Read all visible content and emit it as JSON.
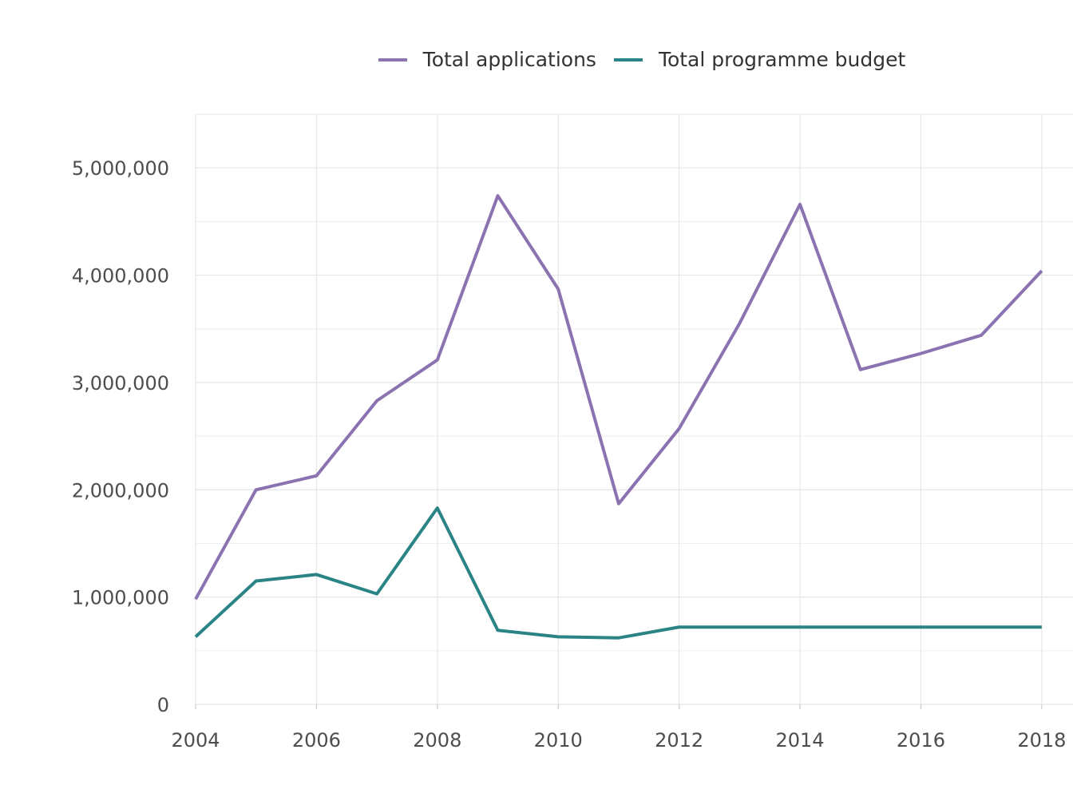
{
  "chart_data": {
    "type": "line",
    "title": "",
    "xlabel": "",
    "ylabel": "",
    "x": [
      2004,
      2005,
      2006,
      2007,
      2008,
      2009,
      2010,
      2011,
      2012,
      2013,
      2014,
      2015,
      2016,
      2017,
      2018
    ],
    "xlim": [
      2004,
      2018.2
    ],
    "ylim": [
      0,
      5500000
    ],
    "x_ticks": [
      2004,
      2006,
      2008,
      2010,
      2012,
      2014,
      2016,
      2018
    ],
    "x_tick_labels": [
      "2004",
      "2006",
      "2008",
      "2010",
      "2012",
      "2014",
      "2016",
      "2018"
    ],
    "y_ticks": [
      0,
      1000000,
      2000000,
      3000000,
      4000000,
      5000000
    ],
    "y_tick_labels": [
      "0",
      "1,000,000",
      "2,000,000",
      "3,000,000",
      "4,000,000",
      "5,000,000"
    ],
    "grid": true,
    "legend_position": "top",
    "series": [
      {
        "name": "Total applications",
        "color": "#8b72b0",
        "values": [
          980000,
          2000000,
          2130000,
          2830000,
          3210000,
          4740000,
          3870000,
          1870000,
          2570000,
          3550000,
          4660000,
          3120000,
          3270000,
          3440000,
          4040000
        ]
      },
      {
        "name": "Total programme budget",
        "color": "#2a8486",
        "values": [
          630000,
          1150000,
          1210000,
          1030000,
          1830000,
          690000,
          630000,
          620000,
          720000,
          720000,
          720000,
          720000,
          720000,
          720000,
          720000
        ]
      }
    ]
  }
}
